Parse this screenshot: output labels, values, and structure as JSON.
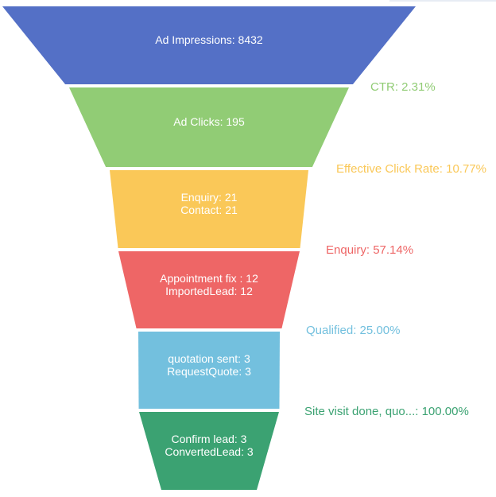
{
  "chart_data": {
    "type": "funnel",
    "title": "",
    "background": "#ffffff",
    "label_text_color": "#ffffff",
    "stages": [
      {
        "label_lines": [
          "Ad Impressions: 8432"
        ],
        "items": [
          {
            "name": "Ad Impressions",
            "value": 8432
          }
        ],
        "color": "#5470c6"
      },
      {
        "label_lines": [
          "Ad Clicks: 195"
        ],
        "items": [
          {
            "name": "Ad Clicks",
            "value": 195
          }
        ],
        "color": "#91cc75"
      },
      {
        "label_lines": [
          "Enquiry: 21",
          "Contact: 21"
        ],
        "items": [
          {
            "name": "Enquiry",
            "value": 21
          },
          {
            "name": "Contact",
            "value": 21
          }
        ],
        "color": "#fac858"
      },
      {
        "label_lines": [
          "Appointment fix : 12",
          "ImportedLead: 12"
        ],
        "items": [
          {
            "name": "Appointment fix",
            "value": 12
          },
          {
            "name": "ImportedLead",
            "value": 12
          }
        ],
        "color": "#ee6666"
      },
      {
        "label_lines": [
          "quotation sent: 3",
          "RequestQuote: 3"
        ],
        "items": [
          {
            "name": "quotation sent",
            "value": 3
          },
          {
            "name": "RequestQuote",
            "value": 3
          }
        ],
        "color": "#73c0de"
      },
      {
        "label_lines": [
          "Confirm lead: 3",
          "ConvertedLead: 3"
        ],
        "items": [
          {
            "name": "Confirm lead",
            "value": 3
          },
          {
            "name": "ConvertedLead",
            "value": 3
          }
        ],
        "color": "#3ba272"
      }
    ],
    "conversion_labels": [
      {
        "text": "CTR: 2.31%",
        "color": "#91cc75"
      },
      {
        "text": "Effective Click Rate: 10.77%",
        "color": "#fac858"
      },
      {
        "text": "Enquiry: 57.14%",
        "color": "#ee6666"
      },
      {
        "text": "Qualified: 25.00%",
        "color": "#73c0de"
      },
      {
        "text": "Site visit done, quo...: 100.00%",
        "color": "#3ba272"
      }
    ]
  }
}
